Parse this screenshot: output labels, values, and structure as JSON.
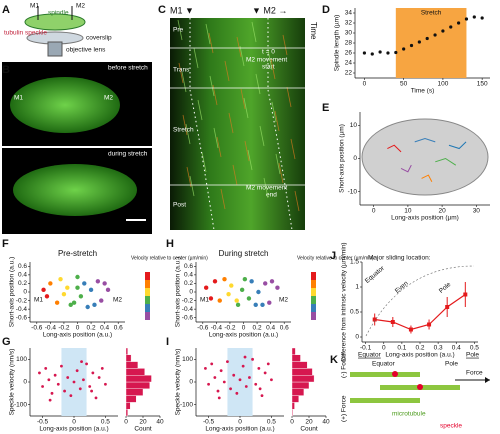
{
  "figure": {
    "panels": [
      "A",
      "B",
      "C",
      "D",
      "E",
      "F",
      "G",
      "H",
      "I",
      "J",
      "K"
    ],
    "a": {
      "m1": "M1",
      "m2": "M2",
      "spindle": "spindle",
      "speckle": "tubulin speckle",
      "coverslip": "coverslip",
      "lens": "objective lens"
    },
    "b": {
      "before": "before stretch",
      "during": "during stretch",
      "m1": "M1",
      "m2": "M2"
    },
    "c": {
      "m1": "M1 ▼",
      "m2": "▼ M2 →",
      "time": "Time",
      "phases": [
        "Pre",
        "Trans",
        "Stretch",
        "Post"
      ],
      "t0": "t = 0",
      "start": [
        "M2 movement",
        "start"
      ],
      "end": [
        "M2 movement",
        "end"
      ]
    },
    "k": {
      "equator": "Equator",
      "pole": "Pole",
      "force": "Force",
      "minus": "(-) Force",
      "plus": "(+) Force",
      "microtubule": "microtubule",
      "speckle": "speckle"
    }
  },
  "chart_data": [
    {
      "type": "line",
      "ylabel": "Spindle length (µm)",
      "xlabel": "Time (s)",
      "annotation": "Stretch",
      "span": [
        40,
        130
      ],
      "span_color": "#f7a541",
      "color": "#111111",
      "x": [
        0,
        10,
        20,
        30,
        40,
        50,
        60,
        70,
        80,
        90,
        100,
        110,
        120,
        130,
        140,
        150
      ],
      "values": [
        26,
        25.8,
        26.2,
        26,
        26.1,
        26.8,
        27.5,
        28.2,
        28.9,
        29.6,
        30.4,
        31.2,
        32,
        32.8,
        33.2,
        33
      ],
      "xlim": [
        -12,
        160
      ],
      "xticks": [
        0,
        50,
        100,
        150
      ],
      "ylim": [
        21,
        35
      ],
      "yticks": [
        22,
        24,
        26,
        28,
        30,
        32,
        34
      ]
    },
    {
      "type": "tracks",
      "ylabel": "Short-axis position (µm)",
      "xlabel": "Long-axis position (µm)",
      "series": [
        {
          "color": "#e41a1c",
          "x": [
            4,
            6,
            8
          ],
          "values": [
            3,
            4,
            2
          ]
        },
        {
          "color": "#377eb8",
          "x": [
            12,
            15,
            18
          ],
          "values": [
            5,
            6,
            5
          ]
        },
        {
          "color": "#984ea3",
          "x": [
            8,
            10,
            11
          ],
          "values": [
            -3,
            -4,
            -2
          ]
        },
        {
          "color": "#4daf4a",
          "x": [
            18,
            21,
            24
          ],
          "values": [
            -1,
            0,
            -2
          ]
        },
        {
          "color": "#ff7f00",
          "x": [
            14,
            16,
            17
          ],
          "values": [
            -6,
            -5,
            -7
          ]
        },
        {
          "color": "#1f78b4",
          "x": [
            22,
            25,
            27
          ],
          "values": [
            4,
            3,
            5
          ]
        }
      ],
      "xlim": [
        -4,
        34
      ],
      "xticks": [
        0,
        10,
        20,
        30
      ],
      "ylim": [
        -14,
        14
      ],
      "yticks": [
        -10,
        0,
        10
      ]
    },
    {
      "type": "scatter",
      "title": "Pre-stretch",
      "ylabel": "Short-axis position (a.u.)",
      "xlabel": "Long-axis position (a.u.)",
      "colorbar": "Velocity relative to center (µm/min)",
      "annotations": [
        "M1",
        "M2"
      ],
      "x": [
        -0.5,
        -0.4,
        -0.3,
        -0.25,
        -0.15,
        -0.1,
        0,
        0.05,
        0.1,
        0.15,
        0.2,
        0.3,
        0.35,
        0.45,
        -0.45,
        -0.2,
        0.25,
        0,
        -0.05,
        0.4
      ],
      "values": [
        0.05,
        0.2,
        -0.25,
        0.3,
        0.1,
        -0.3,
        0.35,
        -0.1,
        0.2,
        -0.35,
        0.05,
        0.25,
        -0.2,
        0.05,
        -0.1,
        -0.05,
        -0.3,
        0.1,
        -0.25,
        0.2
      ],
      "colors": [
        "#e41a1c",
        "#ff7f00",
        "#ff7f00",
        "#ffd92f",
        "#ffd92f",
        "#4daf4a",
        "#4daf4a",
        "#4daf4a",
        "#377eb8",
        "#377eb8",
        "#377eb8",
        "#984ea3",
        "#984ea3",
        "#984ea3",
        "#e41a1c",
        "#ffd92f",
        "#377eb8",
        "#4daf4a",
        "#4daf4a",
        "#984ea3"
      ],
      "xlim": [
        -0.7,
        0.7
      ],
      "xticks": [
        -0.6,
        -0.4,
        -0.2,
        0,
        0.2,
        0.4,
        0.6
      ],
      "ylim": [
        -0.7,
        0.7
      ],
      "yticks": [
        -0.6,
        -0.4,
        -0.2,
        0,
        0.2,
        0.4,
        0.6
      ]
    },
    {
      "type": "scatter",
      "title": "During stretch",
      "ylabel": "Short-axis position (a.u.)",
      "xlabel": "Long-axis position (a.u.)",
      "colorbar": "Velocity relative to center (µm/min)",
      "annotations": [
        "M1",
        "M2"
      ],
      "x": [
        -0.55,
        -0.42,
        -0.35,
        -0.28,
        -0.18,
        -0.08,
        0.02,
        0.08,
        0.12,
        0.18,
        0.22,
        0.32,
        0.38,
        0.5,
        -0.48,
        -0.22,
        0.28,
        -0.02,
        -0.1,
        0.42
      ],
      "values": [
        0.1,
        0.25,
        -0.2,
        0.3,
        0.15,
        -0.3,
        0.3,
        -0.15,
        0.25,
        -0.3,
        0,
        0.2,
        -0.25,
        0.1,
        -0.15,
        -0.05,
        -0.3,
        0.05,
        -0.2,
        0.25
      ],
      "colors": [
        "#e41a1c",
        "#e41a1c",
        "#ff7f00",
        "#ff7f00",
        "#ffd92f",
        "#4daf4a",
        "#4daf4a",
        "#4daf4a",
        "#377eb8",
        "#377eb8",
        "#377eb8",
        "#984ea3",
        "#984ea3",
        "#984ea3",
        "#e41a1c",
        "#ffd92f",
        "#377eb8",
        "#4daf4a",
        "#ffd92f",
        "#984ea3"
      ],
      "xlim": [
        -0.7,
        0.7
      ],
      "xticks": [
        -0.6,
        -0.4,
        -0.2,
        0,
        0.2,
        0.4,
        0.6
      ],
      "ylim": [
        -0.7,
        0.7
      ],
      "yticks": [
        -0.6,
        -0.4,
        -0.2,
        0,
        0.2,
        0.4,
        0.6
      ]
    },
    {
      "type": "scatter",
      "ylabel": "Speckle velocity (nm/s)",
      "xlabel": "Long-axis position (a.u.)",
      "band": [
        -0.2,
        0.2
      ],
      "color": "#d6174f",
      "x": [
        -0.55,
        -0.5,
        -0.45,
        -0.4,
        -0.35,
        -0.3,
        -0.25,
        -0.2,
        -0.15,
        -0.1,
        -0.05,
        0,
        0.05,
        0.1,
        0.15,
        0.2,
        0.25,
        0.3,
        0.35,
        0.4,
        0.45,
        0.5,
        -0.38,
        0.12,
        0.28
      ],
      "values": [
        40,
        -20,
        60,
        10,
        -50,
        30,
        -10,
        70,
        -40,
        20,
        -60,
        0,
        50,
        -30,
        10,
        80,
        -20,
        40,
        -70,
        20,
        60,
        -10,
        -80,
        90,
        -40
      ],
      "xlim": [
        -0.7,
        0.7
      ],
      "xticks": [
        -0.5,
        0,
        0.5
      ],
      "ylim": [
        -150,
        150
      ],
      "yticks": [
        -100,
        0,
        100
      ]
    },
    {
      "type": "histogram",
      "xlabel": "Count",
      "color": "#d6174f",
      "bins": [
        -150,
        -120,
        -90,
        -60,
        -30,
        0,
        30,
        60,
        90,
        120,
        150
      ],
      "counts": [
        2,
        5,
        12,
        20,
        28,
        30,
        22,
        14,
        6,
        2
      ],
      "xlim": [
        0,
        40
      ],
      "xticks": [
        0,
        20,
        40
      ],
      "ylim": [
        -150,
        150
      ]
    },
    {
      "type": "scatter",
      "ylabel": "Speckle velocity (nm/s)",
      "xlabel": "Long-axis position (a.u.)",
      "band": [
        -0.2,
        0.2
      ],
      "color": "#d6174f",
      "x": [
        -0.55,
        -0.5,
        -0.45,
        -0.4,
        -0.35,
        -0.3,
        -0.25,
        -0.2,
        -0.15,
        -0.1,
        -0.05,
        0,
        0.05,
        0.1,
        0.15,
        0.2,
        0.25,
        0.3,
        0.35,
        0.4,
        0.45,
        0.5,
        -0.33,
        0.08,
        0.32
      ],
      "values": [
        60,
        -10,
        80,
        20,
        -40,
        50,
        0,
        90,
        -30,
        30,
        -50,
        10,
        70,
        -20,
        20,
        100,
        -10,
        60,
        -60,
        40,
        80,
        10,
        -70,
        110,
        -30
      ],
      "xlim": [
        -0.7,
        0.7
      ],
      "xticks": [
        -0.5,
        0,
        0.5
      ],
      "ylim": [
        -150,
        150
      ],
      "yticks": [
        -100,
        0,
        100
      ]
    },
    {
      "type": "histogram",
      "xlabel": "Count",
      "color": "#d6174f",
      "bins": [
        -150,
        -120,
        -90,
        -60,
        -30,
        0,
        30,
        60,
        90,
        120,
        150
      ],
      "counts": [
        1,
        3,
        8,
        14,
        20,
        26,
        24,
        18,
        10,
        4
      ],
      "xlim": [
        0,
        40
      ],
      "xticks": [
        0,
        20,
        40
      ],
      "ylim": [
        -150,
        150
      ]
    },
    {
      "type": "errorline",
      "ylabel": "Difference from intrinsic velocity (µm/min)",
      "xlabel": "Long-axis position (a.u.)",
      "color": "#e41a1c",
      "annotations": [
        "Major sliding location:",
        "Equator",
        "Even",
        "Pole"
      ],
      "ends": [
        "Equator",
        "Pole"
      ],
      "x": [
        -0.05,
        0.05,
        0.15,
        0.25,
        0.35,
        0.45
      ],
      "values": [
        0.35,
        0.3,
        0.15,
        0.25,
        0.6,
        0.85
      ],
      "errors": [
        0.12,
        0.1,
        0.08,
        0.1,
        0.2,
        0.25
      ],
      "xlim": [
        -0.12,
        0.52
      ],
      "xticks": [
        -0.1,
        0,
        0.1,
        0.2,
        0.3,
        0.4,
        0.5
      ],
      "ylim": [
        -0.1,
        1.5
      ],
      "yticks": [
        0,
        0.5,
        1,
        1.5
      ]
    }
  ]
}
